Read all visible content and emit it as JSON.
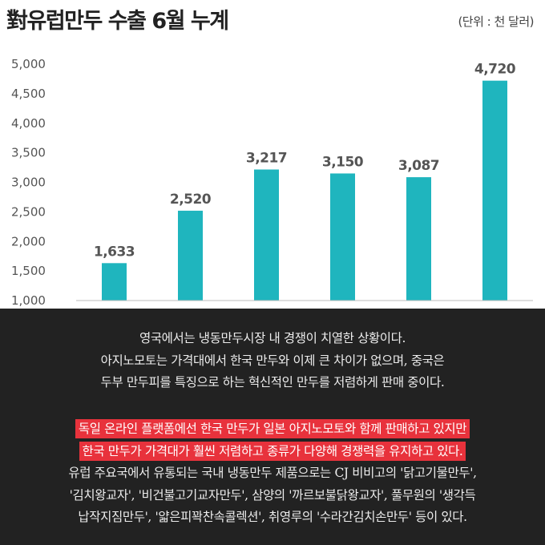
{
  "chart_data": {
    "type": "bar",
    "title": "對유럽만두 수출 6월 누계",
    "unit": "(단위 : 천 달러)",
    "categories": [
      "",
      "",
      "",
      "",
      "",
      ""
    ],
    "values": [
      1633,
      2520,
      3217,
      3150,
      3087,
      4720
    ],
    "value_labels": [
      "1,633",
      "2,520",
      "3,217",
      "3,150",
      "3,087",
      "4,720"
    ],
    "yticks": [
      "1,000",
      "1,500",
      "2,000",
      "2,500",
      "3,000",
      "3,500",
      "4,000",
      "4,500",
      "5,000"
    ],
    "ylim": [
      1000,
      5000
    ],
    "grid": false,
    "bar_color": "#1fb5be",
    "xlabel": "",
    "ylabel": ""
  },
  "article": {
    "paragraph1": [
      "영국에서는 냉동만두시장 내 경쟁이 치열한 상황이다.",
      "아지노모토는 가격대에서 한국 만두와 이제 큰 차이가 없으며, 중국은",
      "두부 만두피를 특징으로 하는 혁신적인 만두를 저렴하게 판매 중이다."
    ],
    "highlight": [
      "독일 온라인 플랫폼에선 한국 만두가 일본 아지노모토와 함께 판매하고 있지만",
      "한국 만두가 가격대가 훨씬 저렴하고 종류가 다양해 경쟁력을 유지하고 있다."
    ],
    "paragraph2": [
      "유럽 주요국에서 유통되는 국내 냉동만두 제품으로는 CJ 비비고의 '닭고기물만두',",
      "'김치왕교자', '비건불고기교자만두', 삼양의 '까르보불닭왕교자', 풀무원의 '생각득",
      "납작지짐만두', '얇은피꽉찬속콜렉션', 취영루의 '수라간김치손만두' 등이 있다."
    ],
    "highlight_color": "#e8323c"
  }
}
